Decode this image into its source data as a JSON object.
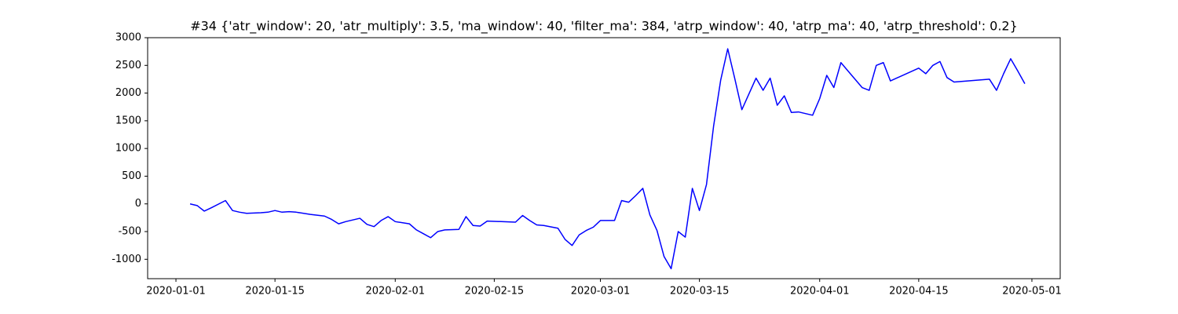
{
  "chart_data": {
    "type": "line",
    "title": "#34 {'atr_window': 20, 'atr_multiply': 3.5, 'ma_window': 40, 'filter_ma': 384, 'atrp_window': 40, 'atrp_ma': 40, 'atrp_threshold': 0.2}",
    "x": [
      "2020-01-03",
      "2020-01-04",
      "2020-01-05",
      "2020-01-06",
      "2020-01-08",
      "2020-01-09",
      "2020-01-10",
      "2020-01-11",
      "2020-01-13",
      "2020-01-14",
      "2020-01-15",
      "2020-01-16",
      "2020-01-17",
      "2020-01-18",
      "2020-01-20",
      "2020-01-22",
      "2020-01-23",
      "2020-01-24",
      "2020-01-25",
      "2020-01-27",
      "2020-01-28",
      "2020-01-29",
      "2020-01-30",
      "2020-01-31",
      "2020-02-01",
      "2020-02-03",
      "2020-02-04",
      "2020-02-05",
      "2020-02-06",
      "2020-02-07",
      "2020-02-08",
      "2020-02-10",
      "2020-02-11",
      "2020-02-12",
      "2020-02-13",
      "2020-02-14",
      "2020-02-18",
      "2020-02-19",
      "2020-02-20",
      "2020-02-21",
      "2020-02-22",
      "2020-02-24",
      "2020-02-25",
      "2020-02-26",
      "2020-02-27",
      "2020-02-28",
      "2020-02-29",
      "2020-03-01",
      "2020-03-03",
      "2020-03-04",
      "2020-03-05",
      "2020-03-06",
      "2020-03-07",
      "2020-03-08",
      "2020-03-09",
      "2020-03-10",
      "2020-03-11",
      "2020-03-12",
      "2020-03-13",
      "2020-03-14",
      "2020-03-15",
      "2020-03-16",
      "2020-03-17",
      "2020-03-18",
      "2020-03-19",
      "2020-03-20",
      "2020-03-21",
      "2020-03-23",
      "2020-03-24",
      "2020-03-25",
      "2020-03-26",
      "2020-03-27",
      "2020-03-28",
      "2020-03-29",
      "2020-03-31",
      "2020-04-01",
      "2020-04-02",
      "2020-04-03",
      "2020-04-04",
      "2020-04-05",
      "2020-04-07",
      "2020-04-08",
      "2020-04-09",
      "2020-04-10",
      "2020-04-11",
      "2020-04-15",
      "2020-04-16",
      "2020-04-17",
      "2020-04-18",
      "2020-04-19",
      "2020-04-20",
      "2020-04-25",
      "2020-04-26",
      "2020-04-27",
      "2020-04-28",
      "2020-04-29",
      "2020-04-30"
    ],
    "series": [
      {
        "color": "#0000ff",
        "values": [
          0,
          -30,
          -130,
          -70,
          60,
          -120,
          -150,
          -170,
          -160,
          -150,
          -120,
          -150,
          -140,
          -150,
          -190,
          -220,
          -280,
          -360,
          -320,
          -260,
          -370,
          -410,
          -300,
          -230,
          -320,
          -360,
          -470,
          -540,
          -610,
          -500,
          -470,
          -460,
          -230,
          -390,
          -400,
          -310,
          -330,
          -210,
          -300,
          -380,
          -390,
          -440,
          -640,
          -750,
          -560,
          -480,
          -420,
          -300,
          -300,
          60,
          30,
          150,
          280,
          -200,
          -480,
          -950,
          -1170,
          -500,
          -600,
          280,
          -120,
          350,
          1400,
          2230,
          2800,
          2260,
          1700,
          2270,
          2050,
          2270,
          1780,
          1950,
          1650,
          1660,
          1600,
          1900,
          2320,
          2100,
          2550,
          2400,
          2100,
          2050,
          2500,
          2550,
          2220,
          2450,
          2350,
          2500,
          2570,
          2280,
          2200,
          2250,
          2050,
          2350,
          2620,
          2400,
          2170
        ]
      }
    ],
    "xlim": [
      "2019-12-28",
      "2020-05-05"
    ],
    "xticks": [
      "2020-01-01",
      "2020-01-15",
      "2020-02-01",
      "2020-02-15",
      "2020-03-01",
      "2020-03-15",
      "2020-04-01",
      "2020-04-15",
      "2020-05-01"
    ],
    "ylim": [
      -1350,
      3000
    ],
    "yticks": [
      -1000,
      -500,
      0,
      500,
      1000,
      1500,
      2000,
      2500,
      3000
    ]
  }
}
